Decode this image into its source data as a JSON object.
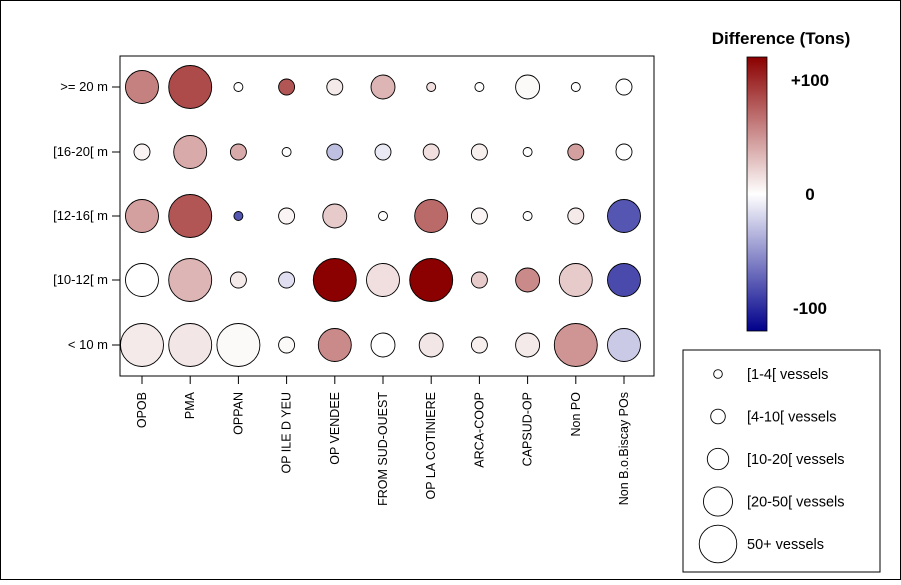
{
  "chart_data": {
    "type": "bubble",
    "rows": [
      ">= 20 m",
      "[16-20[ m",
      "[12-16[ m",
      "[10-12[ m",
      "< 10 m"
    ],
    "columns": [
      "OPOB",
      "PMA",
      "OPPAN",
      "OP ILE D YEU",
      "OP VENDEE",
      "FROM SUD-OUEST",
      "OP LA COTINIERE",
      "ARCA-COOP",
      "CAPSUD-OP",
      "Non PO",
      "Non B.o.Biscay POs"
    ],
    "difference_range": [
      -120,
      120
    ],
    "cells": [
      [
        {
          "size": 4,
          "diff": 60
        },
        {
          "size": 5,
          "diff": 85
        },
        {
          "size": 1,
          "diff": 0
        },
        {
          "size": 2,
          "diff": 80
        },
        {
          "size": 2,
          "diff": 10
        },
        {
          "size": 3,
          "diff": 35
        },
        {
          "size": 1,
          "diff": 15
        },
        {
          "size": 1,
          "diff": 0
        },
        {
          "size": 3,
          "diff": 3
        },
        {
          "size": 1,
          "diff": 0
        },
        {
          "size": 2,
          "diff": 0
        }
      ],
      [
        {
          "size": 2,
          "diff": 5
        },
        {
          "size": 4,
          "diff": 40
        },
        {
          "size": 2,
          "diff": 40
        },
        {
          "size": 1,
          "diff": 0
        },
        {
          "size": 2,
          "diff": -30
        },
        {
          "size": 2,
          "diff": -10
        },
        {
          "size": 2,
          "diff": 15
        },
        {
          "size": 2,
          "diff": 8
        },
        {
          "size": 1,
          "diff": 0
        },
        {
          "size": 2,
          "diff": 45
        },
        {
          "size": 2,
          "diff": 0
        }
      ],
      [
        {
          "size": 4,
          "diff": 45
        },
        {
          "size": 5,
          "diff": 80
        },
        {
          "size": 1,
          "diff": -80
        },
        {
          "size": 2,
          "diff": 5
        },
        {
          "size": 3,
          "diff": 25
        },
        {
          "size": 1,
          "diff": 0
        },
        {
          "size": 4,
          "diff": 70
        },
        {
          "size": 2,
          "diff": 5
        },
        {
          "size": 1,
          "diff": 0
        },
        {
          "size": 2,
          "diff": 10
        },
        {
          "size": 4,
          "diff": -80
        }
      ],
      [
        {
          "size": 4,
          "diff": 0
        },
        {
          "size": 5,
          "diff": 35
        },
        {
          "size": 2,
          "diff": 10
        },
        {
          "size": 2,
          "diff": -15
        },
        {
          "size": 5,
          "diff": 120
        },
        {
          "size": 4,
          "diff": 15
        },
        {
          "size": 5,
          "diff": 120
        },
        {
          "size": 2,
          "diff": 25
        },
        {
          "size": 3,
          "diff": 55
        },
        {
          "size": 4,
          "diff": 25
        },
        {
          "size": 4,
          "diff": -85
        }
      ],
      [
        {
          "size": 5,
          "diff": 10
        },
        {
          "size": 5,
          "diff": 12
        },
        {
          "size": 5,
          "diff": 3
        },
        {
          "size": 2,
          "diff": 3
        },
        {
          "size": 4,
          "diff": 55
        },
        {
          "size": 3,
          "diff": 0
        },
        {
          "size": 3,
          "diff": 12
        },
        {
          "size": 2,
          "diff": 8
        },
        {
          "size": 3,
          "diff": 10
        },
        {
          "size": 5,
          "diff": 50
        },
        {
          "size": 4,
          "diff": -25
        }
      ]
    ],
    "colorbar": {
      "title": "Difference (Tons)",
      "max_color": "#8b0000",
      "mid_color": "#ffffff",
      "min_color": "#00008b",
      "ticks": [
        {
          "value": 100,
          "label": "+100"
        },
        {
          "value": 0,
          "label": "0"
        },
        {
          "value": -100,
          "label": "-100"
        }
      ]
    },
    "size_legend": [
      {
        "size": 1,
        "label": "[1-4[ vessels"
      },
      {
        "size": 2,
        "label": "[4-10[ vessels"
      },
      {
        "size": 3,
        "label": "[10-20[ vessels"
      },
      {
        "size": 4,
        "label": "[20-50[ vessels"
      },
      {
        "size": 5,
        "label": "50+ vessels"
      }
    ]
  }
}
